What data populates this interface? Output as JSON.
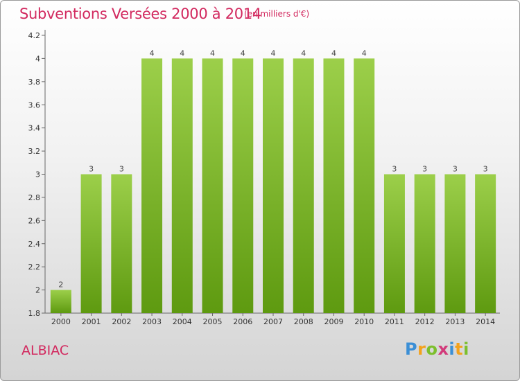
{
  "title": "Subventions Versées 2000 à 2014",
  "subtitle": "(en milliers d'€)",
  "commune": "ALBIAC",
  "logo_text": "Proxiti",
  "colors": {
    "accent": "#d2295f",
    "bar_light": "#9ccf4a",
    "bar_dark": "#5e9a10"
  },
  "chart_data": {
    "type": "bar",
    "categories": [
      "2000",
      "2001",
      "2002",
      "2003",
      "2004",
      "2005",
      "2006",
      "2007",
      "2008",
      "2009",
      "2010",
      "2011",
      "2012",
      "2013",
      "2014"
    ],
    "values": [
      2,
      3,
      3,
      4,
      4,
      4,
      4,
      4,
      4,
      4,
      4,
      3,
      3,
      3,
      3
    ],
    "data_labels": [
      "2",
      "3",
      "3",
      "4",
      "4",
      "4",
      "4",
      "4",
      "4",
      "4",
      "4",
      "3",
      "3",
      "3",
      "3"
    ],
    "title": "Subventions Versées 2000 à 2014",
    "xlabel": "",
    "ylabel": "",
    "ylim": [
      1.8,
      4.2
    ],
    "yticks": [
      "1.8",
      "2",
      "2.2",
      "2.4",
      "2.6",
      "2.8",
      "3",
      "3.2",
      "3.4",
      "3.6",
      "3.8",
      "4",
      "4.2"
    ],
    "grid": false
  }
}
